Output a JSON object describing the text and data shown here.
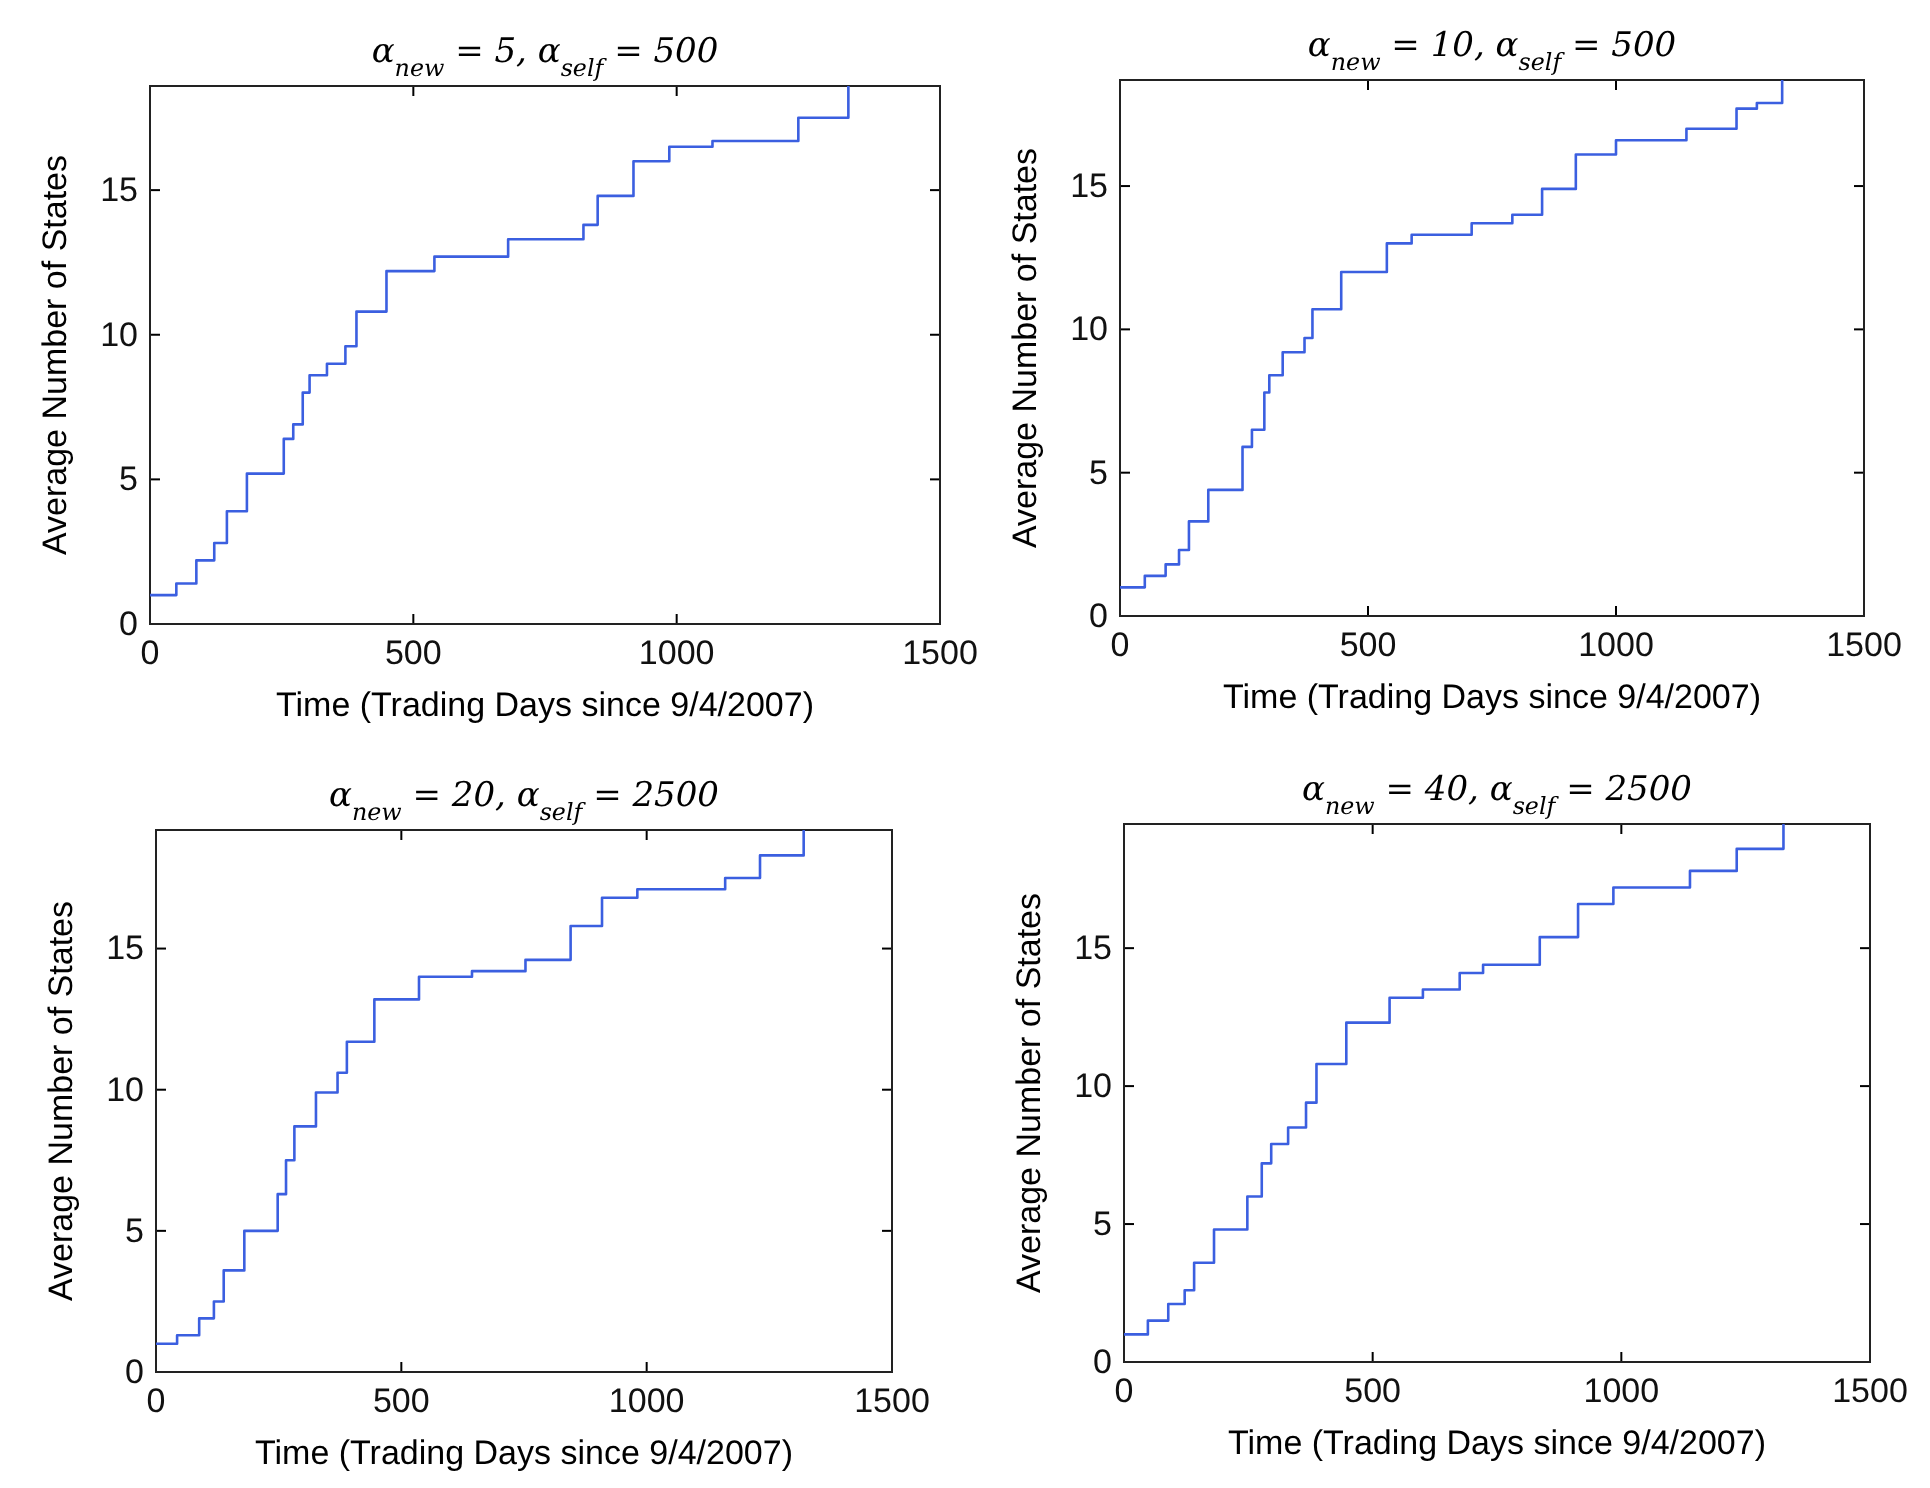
{
  "chart_data": [
    {
      "type": "step",
      "title": "α$_{new}$ = 5, α$_{self}$ = 500",
      "xlabel": "Time (Trading Days since 9/4/2007)",
      "ylabel": "Average Number of States",
      "xlim": [
        0,
        1500
      ],
      "xticks": [
        0,
        500,
        1000,
        1500
      ],
      "ylim": [
        0,
        18.6
      ],
      "yticks": [
        0,
        5,
        10,
        15
      ],
      "grid": false,
      "series": [
        {
          "color": "#3b5fe0",
          "x": [
            0,
            50,
            88,
            122,
            146,
            184,
            254,
            272,
            290,
            303,
            336,
            371,
            392,
            449,
            540,
            680,
            823,
            850,
            918,
            986,
            1068,
            1231,
            1326,
            1326
          ],
          "values": [
            1.0,
            1.4,
            2.2,
            2.8,
            3.9,
            5.2,
            6.4,
            6.9,
            8.0,
            8.6,
            9.0,
            9.6,
            10.8,
            12.2,
            12.7,
            13.3,
            13.8,
            14.8,
            16.0,
            16.5,
            16.7,
            17.5,
            17.5,
            18.6
          ]
        }
      ]
    },
    {
      "type": "step",
      "title": "α$_{new}$ = 10, α$_{self}$ = 500",
      "xlabel": "Time (Trading Days since 9/4/2007)",
      "ylabel": "Average Number of States",
      "xlim": [
        0,
        1500
      ],
      "xticks": [
        0,
        500,
        1000,
        1500
      ],
      "ylim": [
        0,
        18.7
      ],
      "yticks": [
        0,
        5,
        10,
        15
      ],
      "grid": false,
      "series": [
        {
          "color": "#3b5fe0",
          "x": [
            0,
            50,
            92,
            119,
            139,
            178,
            247,
            266,
            291,
            301,
            328,
            372,
            388,
            446,
            538,
            588,
            709,
            791,
            851,
            919,
            1000,
            1142,
            1243,
            1284,
            1335,
            1335
          ],
          "values": [
            1.0,
            1.4,
            1.8,
            2.3,
            3.3,
            4.4,
            5.9,
            6.5,
            7.8,
            8.4,
            9.2,
            9.7,
            10.7,
            12.0,
            13.0,
            13.3,
            13.7,
            14.0,
            14.9,
            16.1,
            16.6,
            17.0,
            17.7,
            17.9,
            17.9,
            18.7
          ]
        }
      ]
    },
    {
      "type": "step",
      "title": "α$_{new}$ = 20, α$_{self}$ = 2500",
      "xlabel": "Time (Trading Days since 9/4/2007)",
      "ylabel": "Average Number of States",
      "xlim": [
        0,
        1500
      ],
      "xticks": [
        0,
        500,
        1000,
        1500
      ],
      "ylim": [
        0,
        19.2
      ],
      "yticks": [
        0,
        5,
        10,
        15
      ],
      "grid": false,
      "series": [
        {
          "color": "#3b5fe0",
          "x": [
            0,
            43,
            88,
            118,
            138,
            180,
            248,
            265,
            282,
            326,
            370,
            389,
            445,
            536,
            644,
            753,
            845,
            909,
            981,
            1160,
            1231,
            1320,
            1320
          ],
          "values": [
            1.0,
            1.3,
            1.9,
            2.5,
            3.6,
            5.0,
            6.3,
            7.5,
            8.7,
            9.9,
            10.6,
            11.7,
            13.2,
            14.0,
            14.2,
            14.6,
            15.8,
            16.8,
            17.1,
            17.5,
            18.3,
            18.3,
            19.2
          ]
        }
      ]
    },
    {
      "type": "step",
      "title": "α$_{new}$ = 40, α$_{self}$ = 2500",
      "xlabel": "Time (Trading Days since 9/4/2007)",
      "ylabel": "Average Number of States",
      "xlim": [
        0,
        1500
      ],
      "xticks": [
        0,
        500,
        1000,
        1500
      ],
      "ylim": [
        0,
        19.5
      ],
      "yticks": [
        0,
        5,
        10,
        15
      ],
      "grid": false,
      "series": [
        {
          "color": "#3b5fe0",
          "x": [
            0,
            48,
            89,
            122,
            141,
            181,
            248,
            277,
            296,
            330,
            366,
            387,
            447,
            534,
            601,
            675,
            722,
            836,
            913,
            984,
            1138,
            1232,
            1326,
            1326
          ],
          "values": [
            1.0,
            1.5,
            2.1,
            2.6,
            3.6,
            4.8,
            6.0,
            7.2,
            7.9,
            8.5,
            9.4,
            10.8,
            12.3,
            13.2,
            13.5,
            14.1,
            14.4,
            15.4,
            16.6,
            17.2,
            17.8,
            18.6,
            18.6,
            19.5
          ]
        }
      ]
    }
  ]
}
